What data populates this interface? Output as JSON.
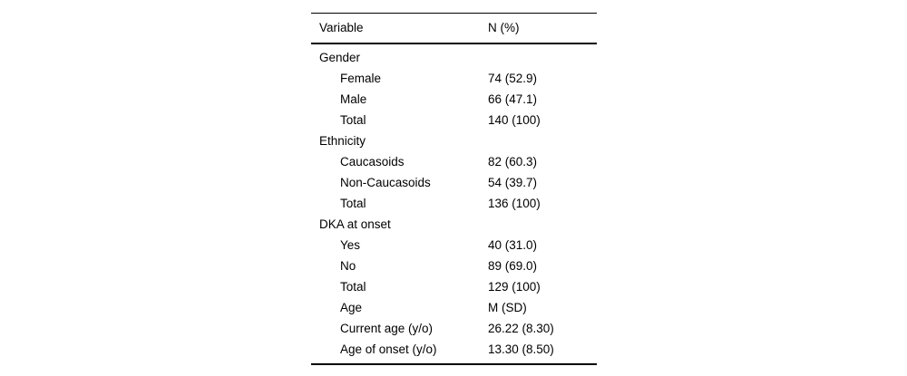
{
  "table": {
    "columns": [
      "Variable",
      "N (%)"
    ],
    "rows": [
      {
        "label": "Gender",
        "value": "",
        "indent": false
      },
      {
        "label": "Female",
        "value": "74 (52.9)",
        "indent": true
      },
      {
        "label": "Male",
        "value": "66 (47.1)",
        "indent": true
      },
      {
        "label": "Total",
        "value": "140 (100)",
        "indent": true
      },
      {
        "label": "Ethnicity",
        "value": "",
        "indent": false
      },
      {
        "label": "Caucasoids",
        "value": "82 (60.3)",
        "indent": true
      },
      {
        "label": "Non-Caucasoids",
        "value": "54 (39.7)",
        "indent": true
      },
      {
        "label": "Total",
        "value": "136 (100)",
        "indent": true
      },
      {
        "label": "DKA at onset",
        "value": "",
        "indent": false
      },
      {
        "label": "Yes",
        "value": "40 (31.0)",
        "indent": true
      },
      {
        "label": "No",
        "value": "89 (69.0)",
        "indent": true
      },
      {
        "label": "Total",
        "value": "129 (100)",
        "indent": true
      },
      {
        "label": "Age",
        "value": "M (SD)",
        "indent": true
      },
      {
        "label": "Current age (y/o)",
        "value": "26.22 (8.30)",
        "indent": true
      },
      {
        "label": "Age of onset (y/o)",
        "value": "13.30 (8.50)",
        "indent": true
      }
    ]
  }
}
